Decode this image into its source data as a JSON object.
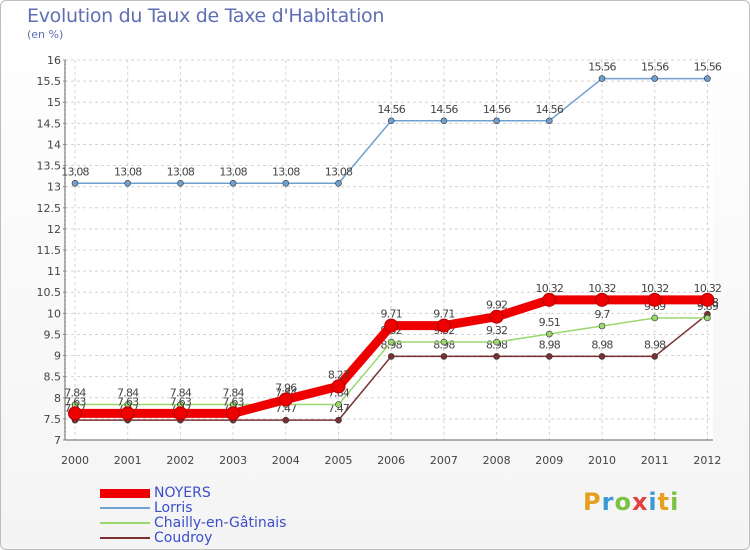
{
  "header": {
    "title": "Evolution du Taux de Taxe d'Habitation",
    "unit": "(en %)"
  },
  "logo": {
    "text": "Proxiti",
    "letters": [
      "P",
      "r",
      "o",
      "x",
      "i",
      "t",
      "i"
    ],
    "colors": [
      "#e6a020",
      "#3a9ad9",
      "#7cc242",
      "#e63f3f",
      "#3a9ad9",
      "#e6a020",
      "#7cc242"
    ]
  },
  "chart_data": {
    "type": "line",
    "title": "Evolution du Taux de Taxe d'Habitation",
    "ylabel": "(en %)",
    "xlabel": "",
    "x": [
      "2000",
      "2001",
      "2002",
      "2003",
      "2004",
      "2005",
      "2006",
      "2007",
      "2008",
      "2009",
      "2010",
      "2011",
      "2012"
    ],
    "ylim": [
      7,
      16
    ],
    "yticks": [
      "7",
      "7.5",
      "8",
      "8.5",
      "9",
      "9.5",
      "10",
      "10.5",
      "11",
      "11.5",
      "12",
      "12.5",
      "13",
      "13.5",
      "14",
      "14.5",
      "15",
      "15.5",
      "16"
    ],
    "grid": true,
    "legend_position": "bottom-left",
    "series": [
      {
        "name": "NOYERS",
        "color": "#ee0000",
        "values": [
          7.63,
          7.63,
          7.63,
          7.63,
          7.96,
          8.27,
          9.71,
          9.71,
          9.92,
          10.32,
          10.32,
          10.32,
          10.32
        ],
        "labels": [
          "7.63",
          "7.63",
          "7.63",
          "7.63",
          "7.96",
          "8.27",
          "9.71",
          "9.71",
          "9.92",
          "10.32",
          "10.32",
          "10.32",
          "10.32"
        ]
      },
      {
        "name": "Lorris",
        "color": "#6fa0d0",
        "values": [
          13.08,
          13.08,
          13.08,
          13.08,
          13.08,
          13.08,
          14.56,
          14.56,
          14.56,
          14.56,
          15.56,
          15.56,
          15.56
        ],
        "labels": [
          "13.08",
          "13.08",
          "13.08",
          "13.08",
          "13.08",
          "13.08",
          "14.56",
          "14.56",
          "14.56",
          "14.56",
          "15.56",
          "15.56",
          "15.56"
        ]
      },
      {
        "name": "Chailly-en-Gâtinais",
        "color": "#9ad86e",
        "values": [
          7.84,
          7.84,
          7.84,
          7.84,
          7.84,
          7.84,
          9.32,
          9.32,
          9.32,
          9.51,
          9.7,
          9.89,
          9.89
        ],
        "labels": [
          "7.84",
          "7.84",
          "7.84",
          "7.84",
          "7.84",
          "7.84",
          "9.32",
          "9.32",
          "9.32",
          "9.51",
          "9.7",
          "9.89",
          "9.89"
        ]
      },
      {
        "name": "Coudroy",
        "color": "#7a3030",
        "values": [
          7.47,
          7.47,
          7.47,
          7.47,
          7.47,
          7.47,
          8.98,
          8.98,
          8.98,
          8.98,
          8.98,
          8.98,
          9.98
        ],
        "labels": [
          "7.47",
          "7.47",
          "7.47",
          "7.47",
          "7.47",
          "7.47",
          "8.98",
          "8.98",
          "8.98",
          "8.98",
          "8.98",
          "8.98",
          "9.98"
        ]
      }
    ]
  }
}
